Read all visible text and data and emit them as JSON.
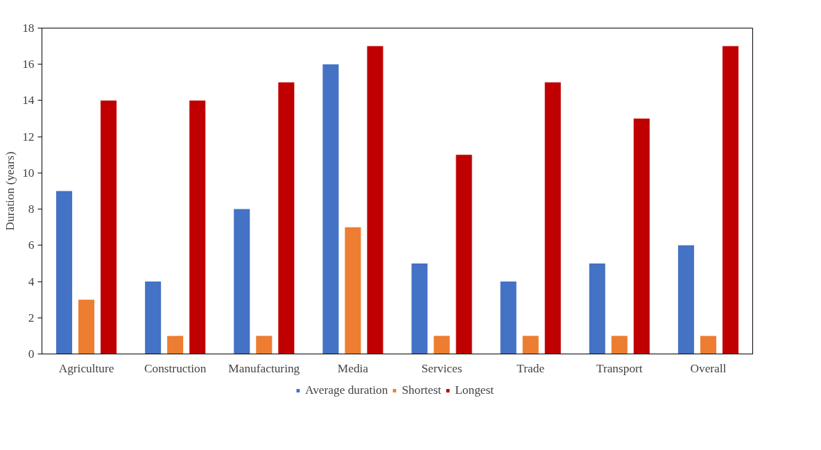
{
  "chart_data": {
    "type": "bar",
    "ylabel": "Duration (years)",
    "categories": [
      "Agriculture",
      "Construction",
      "Manufacturing",
      "Media",
      "Services",
      "Trade",
      "Transport",
      "Overall"
    ],
    "series": [
      {
        "name": "Average duration",
        "color": "#4472c4",
        "values": [
          9,
          4,
          8,
          16,
          5,
          4,
          5,
          6
        ]
      },
      {
        "name": "Shortest",
        "color": "#ed7d31",
        "values": [
          3,
          1,
          1,
          7,
          1,
          1,
          1,
          1
        ]
      },
      {
        "name": "Longest",
        "color": "#c00000",
        "values": [
          14,
          14,
          15,
          17,
          11,
          15,
          13,
          17
        ]
      }
    ],
    "ylim": [
      0,
      18
    ],
    "yticks": [
      0,
      2,
      4,
      6,
      8,
      10,
      12,
      14,
      16,
      18
    ],
    "grid": false,
    "legend": "bottom"
  }
}
